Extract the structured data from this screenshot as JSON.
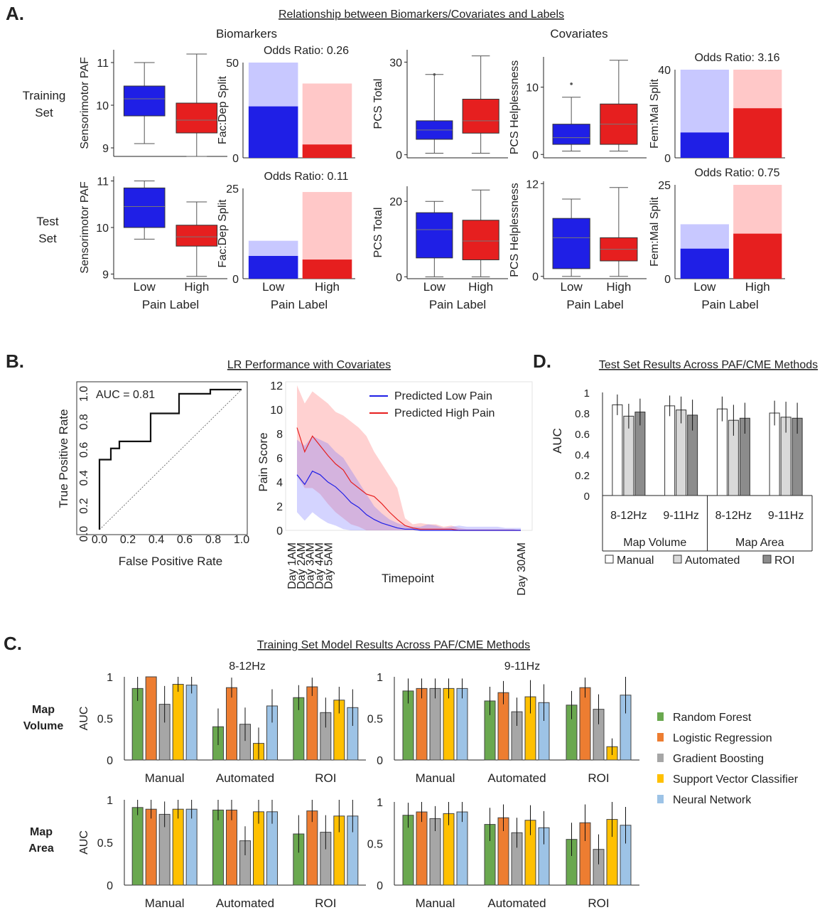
{
  "colors": {
    "low": "#1f1fe6",
    "low_light": "#c8c8ff",
    "high": "#e61f1f",
    "high_light": "#ffc8c8",
    "rf": "#6aa84f",
    "lr": "#ed7d31",
    "gb": "#a6a6a6",
    "svc": "#ffc000",
    "nn": "#9dc3e6",
    "manual": "#ffffff",
    "automated": "#d9d9d9",
    "roi": "#8c8c8c"
  },
  "panelA": {
    "letter": "A.",
    "title": "Relationship between Biomarkers/Covariates and Labels",
    "group_biomarkers": "Biomarkers",
    "group_covariates": "Covariates",
    "row_training": [
      "Training",
      "Set"
    ],
    "row_test": [
      "Test",
      "Set"
    ],
    "xlabel": "Pain Label",
    "categories": [
      "Low",
      "High"
    ]
  },
  "panelB": {
    "letter": "B.",
    "title": "LR Performance with Covariates"
  },
  "panelC": {
    "letter": "C.",
    "title": "Training Set Model Results Across PAF/CME Methods",
    "freq_left": "8-12Hz",
    "freq_right": "9-11Hz",
    "row_volume": [
      "Map",
      "Volume"
    ],
    "row_area": [
      "Map",
      "Area"
    ],
    "legend": [
      "Random Forest",
      "Logistic Regression",
      "Gradient Boosting",
      "Support Vector Classifier",
      "Neural Network"
    ]
  },
  "panelD": {
    "letter": "D.",
    "title": "Test Set Results Across PAF/CME Methods"
  },
  "chart_data": [
    {
      "id": "A-train-paf",
      "type": "box",
      "ylabel": "Sensorimotor PAF",
      "ylim": [
        8.8,
        11.3
      ],
      "yticks": [
        9,
        10,
        11
      ],
      "categories": [
        "Low",
        "High"
      ],
      "boxes": [
        {
          "whislo": 9.1,
          "q1": 9.75,
          "med": 10.15,
          "q3": 10.45,
          "whishi": 11.0,
          "fliers": []
        },
        {
          "whislo": 8.8,
          "q1": 9.35,
          "med": 9.65,
          "q3": 10.05,
          "whishi": 11.2,
          "fliers": []
        }
      ]
    },
    {
      "id": "A-train-facdep",
      "type": "stacked_bar",
      "ylabel": "Fac:Dep Split",
      "ylim": [
        0,
        50
      ],
      "yticks": [
        0,
        50
      ],
      "odds_ratio": "Odds Ratio: 0.26",
      "categories": [
        "Low",
        "High"
      ],
      "totals": [
        50,
        39
      ],
      "dark": [
        27,
        7
      ]
    },
    {
      "id": "A-train-pcs",
      "type": "box",
      "ylabel": "PCS Total",
      "ylim": [
        -1,
        34
      ],
      "yticks": [
        0,
        30
      ],
      "categories": [
        "Low",
        "High"
      ],
      "boxes": [
        {
          "whislo": 0.5,
          "q1": 5,
          "med": 8,
          "q3": 11,
          "whishi": 26,
          "fliers": [
            26
          ]
        },
        {
          "whislo": 0.5,
          "q1": 7,
          "med": 11,
          "q3": 18,
          "whishi": 32,
          "fliers": []
        }
      ]
    },
    {
      "id": "A-train-helpless",
      "type": "box",
      "ylabel": "PCS Helplessness",
      "ylim": [
        -0.5,
        14.5
      ],
      "yticks": [
        0,
        10
      ],
      "categories": [
        "Low",
        "High"
      ],
      "boxes": [
        {
          "whislo": 0.5,
          "q1": 1.5,
          "med": 2.5,
          "q3": 4.5,
          "whishi": 8.5,
          "fliers": [
            10.5
          ]
        },
        {
          "whislo": 0.5,
          "q1": 1.5,
          "med": 4.5,
          "q3": 7.5,
          "whishi": 14,
          "fliers": []
        }
      ]
    },
    {
      "id": "A-train-femmal",
      "type": "stacked_bar",
      "ylabel": "Fem:Mal Split",
      "ylim": [
        0,
        40
      ],
      "yticks": [
        0,
        40
      ],
      "odds_ratio": "Odds Ratio: 3.16",
      "categories": [
        "Low",
        "High"
      ],
      "totals": [
        40,
        40
      ],
      "dark": [
        11.5,
        22.5
      ]
    },
    {
      "id": "A-test-paf",
      "type": "box",
      "ylabel": "Sensorimotor PAF",
      "ylim": [
        8.9,
        11.1
      ],
      "yticks": [
        9,
        10,
        11
      ],
      "categories": [
        "Low",
        "High"
      ],
      "boxes": [
        {
          "whislo": 9.75,
          "q1": 10.0,
          "med": 10.45,
          "q3": 10.85,
          "whishi": 11.0,
          "fliers": []
        },
        {
          "whislo": 8.95,
          "q1": 9.6,
          "med": 9.8,
          "q3": 10.05,
          "whishi": 10.55,
          "fliers": []
        }
      ]
    },
    {
      "id": "A-test-facdep",
      "type": "stacked_bar",
      "ylabel": "Fac:Dep Split",
      "ylim": [
        0,
        25
      ],
      "yticks": [
        0,
        25
      ],
      "odds_ratio": "Odds Ratio: 0.11",
      "categories": [
        "Low",
        "High"
      ],
      "totals": [
        10.5,
        24
      ],
      "dark": [
        6.3,
        5.3
      ]
    },
    {
      "id": "A-test-pcs",
      "type": "box",
      "ylabel": "PCS Total",
      "ylim": [
        -0.5,
        24
      ],
      "yticks": [
        0,
        20
      ],
      "categories": [
        "Low",
        "High"
      ],
      "boxes": [
        {
          "whislo": 0,
          "q1": 5,
          "med": 12.5,
          "q3": 17,
          "whishi": 20,
          "fliers": []
        },
        {
          "whislo": 0,
          "q1": 4.5,
          "med": 9.5,
          "q3": 15,
          "whishi": 23,
          "fliers": []
        }
      ]
    },
    {
      "id": "A-test-helpless",
      "type": "box",
      "ylabel": "PCS Helplessness",
      "ylim": [
        -0.3,
        12.3
      ],
      "yticks": [
        0,
        12
      ],
      "categories": [
        "Low",
        "High"
      ],
      "boxes": [
        {
          "whislo": 0,
          "q1": 1,
          "med": 5,
          "q3": 7.5,
          "whishi": 10,
          "fliers": []
        },
        {
          "whislo": 0,
          "q1": 2,
          "med": 3.5,
          "q3": 5,
          "whishi": 11.5,
          "fliers": []
        }
      ]
    },
    {
      "id": "A-test-femmal",
      "type": "stacked_bar",
      "ylabel": "Fem:Mal Split",
      "ylim": [
        0,
        25
      ],
      "yticks": [
        0,
        25
      ],
      "odds_ratio": "Odds Ratio: 0.75",
      "categories": [
        "Low",
        "High"
      ],
      "totals": [
        14.5,
        25
      ],
      "dark": [
        8,
        12
      ]
    },
    {
      "id": "B-roc",
      "type": "line",
      "xlabel": "False Positive Rate",
      "ylabel": "True Positive Rate",
      "xlim": [
        0,
        1
      ],
      "ylim": [
        0,
        1
      ],
      "ticks": [
        "0.0",
        "0.2",
        "0.4",
        "0.6",
        "0.8",
        "1.0"
      ],
      "annotation": "AUC = 0.81",
      "x": [
        0,
        0,
        0.08,
        0.08,
        0.14,
        0.14,
        0.36,
        0.36,
        0.56,
        0.56,
        0.78,
        0.78,
        1.0
      ],
      "y": [
        0,
        0.5,
        0.5,
        0.58,
        0.58,
        0.63,
        0.63,
        0.83,
        0.83,
        0.97,
        0.97,
        1.0,
        1.0
      ]
    },
    {
      "id": "B-trajectory",
      "type": "line",
      "xlabel": "Timepoint",
      "ylabel": "Pain Score",
      "ylim": [
        0,
        12
      ],
      "yticks": [
        0,
        2,
        4,
        6,
        8,
        10,
        12
      ],
      "xtick_labels": [
        "Day 1AM",
        "Day 2AM",
        "Day 3AM",
        "Day 4AM",
        "Day 5AM",
        "Day 30AM"
      ],
      "xtick_positions": [
        1,
        2,
        3,
        4,
        5,
        30
      ],
      "x": [
        1,
        2,
        3,
        4,
        5,
        6,
        7,
        8,
        9,
        10,
        11,
        12,
        13,
        14,
        15,
        16,
        17,
        18,
        19,
        20,
        21,
        22,
        23,
        24,
        25,
        26,
        27,
        28,
        29,
        30
      ],
      "series": [
        {
          "name": "Predicted Low Pain",
          "values": [
            4.6,
            3.8,
            4.9,
            4.6,
            4.0,
            3.6,
            3.0,
            2.3,
            1.9,
            1.3,
            0.9,
            0.6,
            0.4,
            0.2,
            0.1,
            0.1,
            0,
            0,
            0,
            0,
            0,
            0,
            0,
            0,
            0,
            0,
            0,
            0,
            0,
            0
          ],
          "lower": [
            1.5,
            0.8,
            1.5,
            1.0,
            0.6,
            0.4,
            0.1,
            0,
            0,
            0,
            0,
            0,
            0,
            0,
            0,
            0,
            0,
            0,
            0,
            0,
            0,
            0,
            0,
            0,
            0,
            0,
            0,
            0,
            0,
            0
          ],
          "upper": [
            7.5,
            7.0,
            7.8,
            7.5,
            7.2,
            6.5,
            6.0,
            5.0,
            4.0,
            3.0,
            2.0,
            1.4,
            0.9,
            0.6,
            0.4,
            0.3,
            0.3,
            0.5,
            0.4,
            0.2,
            0.3,
            0.4,
            0.3,
            0.3,
            0.3,
            0.3,
            0.3,
            0.2,
            0.2,
            0.2
          ]
        },
        {
          "name": "Predicted High Pain",
          "values": [
            8.5,
            6.5,
            7.8,
            7.0,
            6.2,
            5.5,
            5.0,
            4.0,
            3.5,
            3.0,
            2.8,
            2.2,
            1.5,
            0.9,
            0.4,
            0.2,
            0.1,
            0.1,
            0.1,
            0.1,
            0.1,
            0,
            0,
            0,
            0,
            0,
            0,
            0,
            0,
            0
          ],
          "lower": [
            4.5,
            3.5,
            3.5,
            3.0,
            2.2,
            1.5,
            1.0,
            0.5,
            0.3,
            0,
            0,
            0,
            0,
            0,
            0,
            0,
            0,
            0,
            0,
            0,
            0,
            0,
            0,
            0,
            0,
            0,
            0,
            0,
            0,
            0
          ],
          "upper": [
            12,
            10.5,
            11.5,
            11,
            10.5,
            9.8,
            9.5,
            9.0,
            8.5,
            7.8,
            6.5,
            5.5,
            4.5,
            3.5,
            1.0,
            0.5,
            0.6,
            0.5,
            0.5,
            0.3,
            0.4,
            0.2,
            0.1,
            0.1,
            0.1,
            0.1,
            0.1,
            0.1,
            0.1,
            0
          ]
        }
      ]
    },
    {
      "id": "C-vol-812",
      "type": "bar",
      "ylabel": "AUC",
      "ylim": [
        0,
        1
      ],
      "yticks": [
        "0",
        "0.5",
        "1"
      ],
      "categories": [
        "Manual",
        "Automated",
        "ROI"
      ],
      "series": [
        {
          "values": [
            0.86,
            0.4,
            0.75
          ],
          "err": [
            0.15,
            0.22,
            0.15
          ]
        },
        {
          "values": [
            1.0,
            0.87,
            0.88
          ],
          "err": [
            0.0,
            0.12,
            0.11
          ]
        },
        {
          "values": [
            0.67,
            0.43,
            0.57
          ],
          "err": [
            0.22,
            0.2,
            0.18
          ]
        },
        {
          "values": [
            0.91,
            0.2,
            0.72
          ],
          "err": [
            0.09,
            0.19,
            0.16
          ]
        },
        {
          "values": [
            0.9,
            0.65,
            0.63
          ],
          "err": [
            0.1,
            0.2,
            0.22
          ]
        }
      ]
    },
    {
      "id": "C-vol-911",
      "type": "bar",
      "ylabel": "",
      "ylim": [
        0,
        1
      ],
      "yticks": [
        "0",
        "0.5",
        "1"
      ],
      "categories": [
        "Manual",
        "Automated",
        "ROI"
      ],
      "series": [
        {
          "values": [
            0.83,
            0.71,
            0.66
          ],
          "err": [
            0.15,
            0.17,
            0.17
          ]
        },
        {
          "values": [
            0.86,
            0.81,
            0.87
          ],
          "err": [
            0.12,
            0.14,
            0.12
          ]
        },
        {
          "values": [
            0.86,
            0.58,
            0.61
          ],
          "err": [
            0.12,
            0.17,
            0.18
          ]
        },
        {
          "values": [
            0.86,
            0.76,
            0.16
          ],
          "err": [
            0.12,
            0.2,
            0.1
          ]
        },
        {
          "values": [
            0.86,
            0.69,
            0.78
          ],
          "err": [
            0.12,
            0.22,
            0.22
          ]
        }
      ]
    },
    {
      "id": "C-area-812",
      "type": "bar",
      "ylabel": "AUC",
      "ylim": [
        0,
        1
      ],
      "yticks": [
        "0",
        "0.5",
        "1"
      ],
      "categories": [
        "Manual",
        "Automated",
        "ROI"
      ],
      "series": [
        {
          "values": [
            0.91,
            0.88,
            0.6
          ],
          "err": [
            0.09,
            0.12,
            0.22
          ]
        },
        {
          "values": [
            0.89,
            0.88,
            0.87
          ],
          "err": [
            0.11,
            0.12,
            0.13
          ]
        },
        {
          "values": [
            0.83,
            0.52,
            0.62
          ],
          "err": [
            0.15,
            0.17,
            0.2
          ]
        },
        {
          "values": [
            0.89,
            0.86,
            0.81
          ],
          "err": [
            0.11,
            0.14,
            0.19
          ]
        },
        {
          "values": [
            0.89,
            0.86,
            0.81
          ],
          "err": [
            0.11,
            0.14,
            0.19
          ]
        }
      ]
    },
    {
      "id": "C-area-911",
      "type": "bar",
      "ylabel": "",
      "ylim": [
        0,
        1
      ],
      "yticks": [
        "0",
        "0.5",
        "1"
      ],
      "categories": [
        "Manual",
        "Automated",
        "ROI"
      ],
      "series": [
        {
          "values": [
            0.84,
            0.73,
            0.55
          ],
          "err": [
            0.15,
            0.2,
            0.2
          ]
        },
        {
          "values": [
            0.88,
            0.81,
            0.75
          ],
          "err": [
            0.12,
            0.16,
            0.22
          ]
        },
        {
          "values": [
            0.8,
            0.63,
            0.43
          ],
          "err": [
            0.15,
            0.18,
            0.18
          ]
        },
        {
          "values": [
            0.86,
            0.78,
            0.79
          ],
          "err": [
            0.14,
            0.18,
            0.21
          ]
        },
        {
          "values": [
            0.88,
            0.69,
            0.72
          ],
          "err": [
            0.12,
            0.2,
            0.22
          ]
        }
      ]
    },
    {
      "id": "D-test",
      "type": "bar",
      "ylabel": "AUC",
      "ylim": [
        0,
        1
      ],
      "yticks": [
        "0",
        "0.2",
        "0.4",
        "0.6",
        "0.8",
        "1"
      ],
      "groups": [
        "Map Volume",
        "Map Area"
      ],
      "categories": [
        "8-12Hz",
        "9-11Hz",
        "8-12Hz",
        "9-11Hz"
      ],
      "series": [
        {
          "name": "Manual",
          "values": [
            0.88,
            0.87,
            0.84,
            0.8
          ],
          "err": [
            0.1,
            0.1,
            0.12,
            0.12
          ]
        },
        {
          "name": "Automated",
          "values": [
            0.77,
            0.83,
            0.73,
            0.76
          ],
          "err": [
            0.12,
            0.13,
            0.15,
            0.15
          ]
        },
        {
          "name": "ROI",
          "values": [
            0.81,
            0.78,
            0.75,
            0.75
          ],
          "err": [
            0.13,
            0.15,
            0.15,
            0.15
          ]
        }
      ]
    }
  ]
}
